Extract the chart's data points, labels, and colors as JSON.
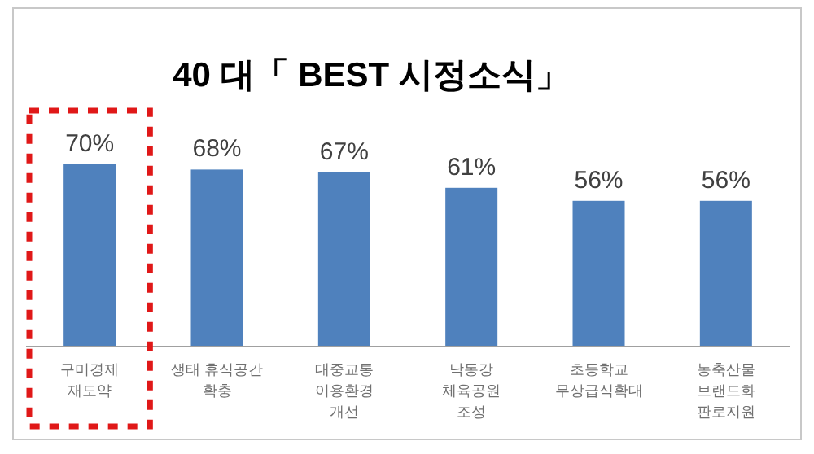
{
  "chart_data": {
    "type": "bar",
    "title": "40 대「 BEST 시정소식」",
    "categories": [
      "구미경제\n재도약",
      "생태 휴식공간\n확충",
      "대중교통\n이용환경\n개선",
      "낙동강\n체육공원\n조성",
      "초등학교\n무상급식확대",
      "농축산물\n브랜드화\n판로지원"
    ],
    "values": [
      70,
      68,
      67,
      61,
      56,
      56
    ],
    "value_labels": [
      "70%",
      "68%",
      "67%",
      "61%",
      "56%",
      "56%"
    ],
    "color": "#4f81bd"
  }
}
